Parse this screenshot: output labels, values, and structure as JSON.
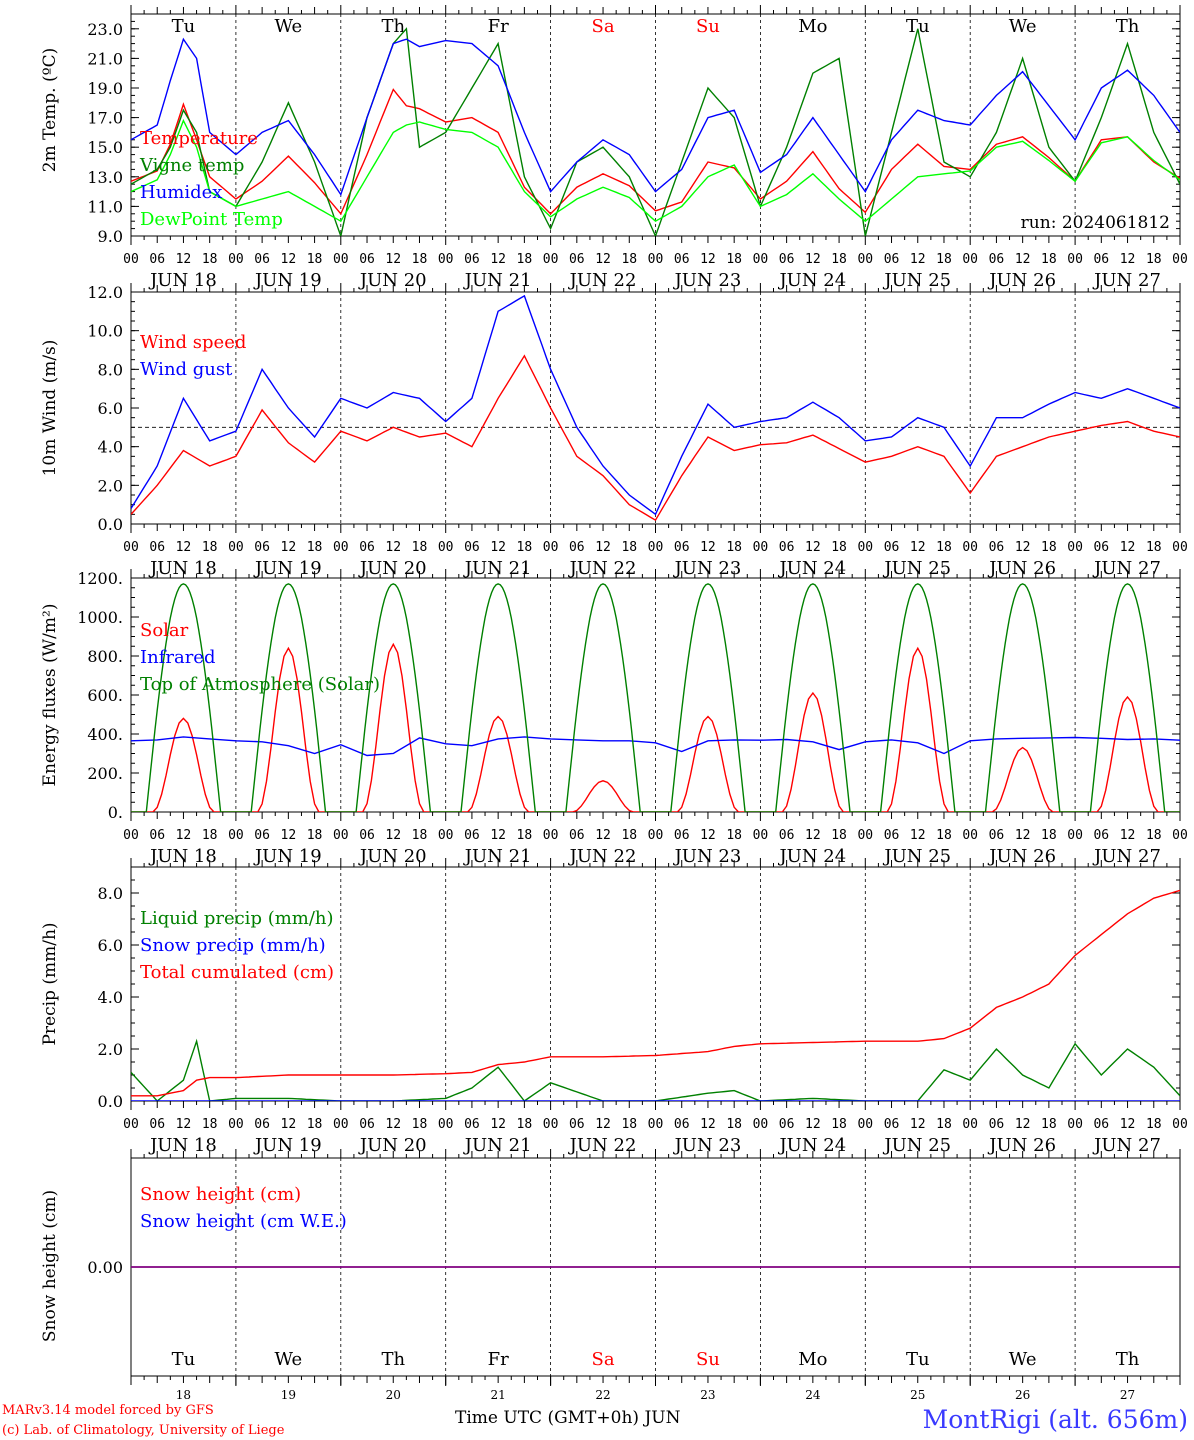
{
  "chart_data": [
    {
      "type": "line",
      "ylabel": "2m Temp. (ºC)",
      "ylim": [
        9.0,
        24.0
      ],
      "yticks": [
        "9.0",
        "11.0",
        "13.0",
        "15.0",
        "17.0",
        "19.0",
        "21.0",
        "23.0"
      ],
      "annotation": "run: 2024061812",
      "day_labels": [
        "Tu",
        "We",
        "Th",
        "Fr",
        "Sa",
        "Su",
        "Mo",
        "Tu",
        "We",
        "Th"
      ],
      "x_hours": [
        0,
        6,
        9,
        12,
        15,
        18,
        24,
        30,
        36,
        42,
        48,
        54,
        60,
        63,
        66,
        72,
        78,
        84,
        90,
        96,
        102,
        108,
        114,
        120,
        126,
        132,
        138,
        144,
        150,
        156,
        162,
        168,
        174,
        180,
        186,
        192,
        198,
        204,
        210,
        216,
        222,
        228,
        234,
        240
      ],
      "series": [
        {
          "name": "Temperature",
          "color": "#ff0000",
          "values": [
            12.7,
            13.4,
            15.2,
            17.9,
            15.5,
            13.0,
            11.5,
            12.7,
            14.4,
            12.6,
            10.5,
            14.5,
            18.9,
            17.8,
            17.6,
            16.7,
            17.0,
            16.0,
            12.3,
            10.5,
            12.3,
            13.2,
            12.4,
            10.7,
            11.3,
            14.0,
            13.6,
            11.5,
            12.7,
            14.7,
            12.2,
            10.6,
            13.5,
            15.2,
            13.7,
            13.5,
            15.2,
            15.7,
            14.3,
            12.7,
            15.5,
            15.7,
            14.0,
            12.9
          ]
        },
        {
          "name": "Vigne temp",
          "color": "#008000",
          "values": [
            12.5,
            13.5,
            15.0,
            17.5,
            16.0,
            12.0,
            11.0,
            14.0,
            18.0,
            14.0,
            9.0,
            17.0,
            22.0,
            23.0,
            15.0,
            16.0,
            19.0,
            22.0,
            13.0,
            9.5,
            14.0,
            15.0,
            13.0,
            9.0,
            14.0,
            19.0,
            17.0,
            11.0,
            15.0,
            20.0,
            21.0,
            9.0,
            16.0,
            23.0,
            14.0,
            13.0,
            16.0,
            21.0,
            15.0,
            12.7,
            17.0,
            22.0,
            16.0,
            12.5
          ]
        },
        {
          "name": "Humidex",
          "color": "#0000ff",
          "values": [
            15.5,
            16.5,
            19.5,
            22.3,
            21.0,
            16.0,
            14.5,
            16.0,
            16.8,
            14.5,
            11.8,
            17.0,
            22.0,
            22.3,
            21.8,
            22.2,
            22.0,
            20.5,
            16.0,
            12.0,
            14.0,
            15.5,
            14.5,
            12.0,
            13.5,
            17.0,
            17.5,
            13.3,
            14.5,
            17.0,
            14.5,
            12.0,
            15.5,
            17.5,
            16.8,
            16.5,
            18.5,
            20.1,
            17.8,
            15.5,
            19.0,
            20.2,
            18.5,
            16.0
          ]
        },
        {
          "name": "DewPoint Temp",
          "color": "#00ff00",
          "values": [
            12.0,
            12.8,
            14.5,
            16.8,
            15.0,
            12.0,
            11.0,
            11.5,
            12.0,
            11.0,
            10.0,
            13.0,
            16.0,
            16.5,
            16.7,
            16.2,
            16.0,
            15.0,
            12.0,
            10.3,
            11.5,
            12.3,
            11.6,
            10.0,
            11.0,
            13.0,
            13.8,
            11.0,
            11.8,
            13.2,
            11.5,
            10.0,
            11.5,
            13.0,
            13.2,
            13.4,
            15.0,
            15.4,
            14.1,
            12.7,
            15.3,
            15.7,
            14.1,
            12.8
          ]
        }
      ]
    },
    {
      "type": "line",
      "ylabel": "10m Wind (m/s)",
      "ylim": [
        0.0,
        12.0
      ],
      "yticks": [
        "0.0",
        "2.0",
        "4.0",
        "6.0",
        "8.0",
        "10.0",
        "12.0"
      ],
      "reference_line": 5.0,
      "x_hours": [
        0,
        6,
        12,
        18,
        24,
        30,
        36,
        42,
        48,
        54,
        60,
        66,
        72,
        78,
        84,
        90,
        96,
        102,
        108,
        114,
        120,
        126,
        132,
        138,
        144,
        150,
        156,
        162,
        168,
        174,
        180,
        186,
        192,
        198,
        204,
        210,
        216,
        222,
        228,
        234,
        240
      ],
      "series": [
        {
          "name": "Wind speed",
          "color": "#ff0000",
          "values": [
            0.5,
            2.0,
            3.8,
            3.0,
            3.5,
            5.9,
            4.2,
            3.2,
            4.8,
            4.3,
            5.0,
            4.5,
            4.7,
            4.0,
            6.5,
            8.7,
            6.0,
            3.5,
            2.5,
            1.0,
            0.2,
            2.5,
            4.5,
            3.8,
            4.1,
            4.2,
            4.6,
            3.9,
            3.2,
            3.5,
            4.0,
            3.5,
            1.6,
            3.5,
            4.0,
            4.5,
            4.8,
            5.1,
            5.3,
            4.8,
            4.5
          ]
        },
        {
          "name": "Wind gust",
          "color": "#0000ff",
          "values": [
            0.8,
            3.0,
            6.5,
            4.3,
            4.8,
            8.0,
            6.0,
            4.5,
            6.5,
            6.0,
            6.8,
            6.5,
            5.3,
            6.5,
            11.0,
            11.8,
            8.0,
            5.0,
            3.0,
            1.5,
            0.5,
            3.5,
            6.2,
            5.0,
            5.3,
            5.5,
            6.3,
            5.5,
            4.3,
            4.5,
            5.5,
            5.0,
            3.0,
            5.5,
            5.5,
            6.2,
            6.8,
            6.5,
            7.0,
            6.5,
            6.0
          ]
        }
      ]
    },
    {
      "type": "line",
      "ylabel": "Energy fluxes (W/m²)",
      "ylim": [
        0,
        1200
      ],
      "yticks": [
        "0.",
        "200.",
        "400.",
        "600.",
        "800.",
        "1000.",
        "1200."
      ],
      "daily_peak_solar": [
        480,
        840,
        860,
        490,
        160,
        490,
        610,
        840,
        330,
        590
      ],
      "series": [
        {
          "name": "Solar",
          "color": "#ff0000"
        },
        {
          "name": "Infrared",
          "color": "#0000ff",
          "values": [
            365,
            370,
            385,
            375,
            365,
            360,
            340,
            300,
            345,
            290,
            300,
            380,
            350,
            340,
            375,
            385,
            375,
            370,
            365,
            365,
            355,
            310,
            365,
            370,
            368,
            372,
            360,
            320,
            360,
            370,
            355,
            300,
            365,
            375,
            378,
            380,
            382,
            378,
            372,
            375,
            368
          ]
        },
        {
          "name": "Top of Atmosphere (Solar)",
          "color": "#008000",
          "peak": 1170
        }
      ]
    },
    {
      "type": "line",
      "ylabel": "Precip (mm/h)",
      "ylim": [
        0.0,
        9.0
      ],
      "yticks": [
        "0.0",
        "2.0",
        "4.0",
        "6.0",
        "8.0"
      ],
      "x_hours": [
        0,
        6,
        12,
        15,
        18,
        24,
        36,
        48,
        60,
        72,
        78,
        84,
        90,
        96,
        108,
        120,
        132,
        138,
        144,
        156,
        168,
        180,
        186,
        192,
        198,
        204,
        210,
        216,
        222,
        228,
        234,
        240
      ],
      "series": [
        {
          "name": "Liquid precip (mm/h)",
          "color": "#008000",
          "values": [
            1.1,
            0.0,
            0.8,
            2.3,
            0.0,
            0.1,
            0.1,
            0.0,
            0.0,
            0.1,
            0.5,
            1.3,
            0.0,
            0.7,
            0.0,
            0.0,
            0.3,
            0.4,
            0.0,
            0.1,
            0.0,
            0.0,
            1.2,
            0.8,
            2.0,
            1.0,
            0.5,
            2.2,
            1.0,
            2.0,
            1.3,
            0.2
          ]
        },
        {
          "name": "Snow precip (mm/h)",
          "color": "#0000ff",
          "values": [
            0,
            0,
            0,
            0,
            0,
            0,
            0,
            0,
            0,
            0,
            0,
            0,
            0,
            0,
            0,
            0,
            0,
            0,
            0,
            0,
            0,
            0,
            0,
            0,
            0,
            0,
            0,
            0,
            0,
            0,
            0,
            0
          ]
        },
        {
          "name": "Total cumulated (cm)",
          "color": "#ff0000",
          "values": [
            0.2,
            0.2,
            0.4,
            0.8,
            0.9,
            0.9,
            1.0,
            1.0,
            1.0,
            1.05,
            1.1,
            1.4,
            1.5,
            1.7,
            1.7,
            1.75,
            1.9,
            2.1,
            2.2,
            2.25,
            2.3,
            2.3,
            2.4,
            2.8,
            3.6,
            4.0,
            4.5,
            5.6,
            6.4,
            7.2,
            7.8,
            8.1
          ]
        }
      ]
    },
    {
      "type": "line",
      "ylabel": "Snow height (cm)",
      "yticks": [
        "0.00"
      ],
      "series": [
        {
          "name": "Snow height (cm)",
          "color": "#ff0000",
          "values": [
            0,
            0
          ]
        },
        {
          "name": "Snow height (cm W.E.)",
          "color": "#0000ff",
          "values": [
            0,
            0
          ]
        }
      ]
    }
  ],
  "axis": {
    "hour_labels": [
      "00",
      "06",
      "12",
      "18"
    ],
    "end_hour_label": "00",
    "dates": [
      "JUN 18",
      "JUN 19",
      "JUN 20",
      "JUN 21",
      "JUN 22",
      "JUN 23",
      "JUN 24",
      "JUN 25",
      "JUN 26",
      "JUN 27"
    ],
    "day_labels": [
      "Tu",
      "We",
      "Th",
      "Fr",
      "Sa",
      "Su",
      "Mo",
      "Tu",
      "We",
      "Th"
    ],
    "day_numbers": [
      "18",
      "19",
      "20",
      "21",
      "22",
      "23",
      "24",
      "25",
      "26",
      "27"
    ],
    "weekend_color": "#ff0000",
    "xlabel": "Time UTC (GMT+0h) JUN"
  },
  "footer": {
    "credit_line1": "MARv3.14 model forced by GFS",
    "credit_line2": "(c) Lab. of Climatology, University of Liege",
    "station": "MontRigi (alt. 656m)"
  }
}
